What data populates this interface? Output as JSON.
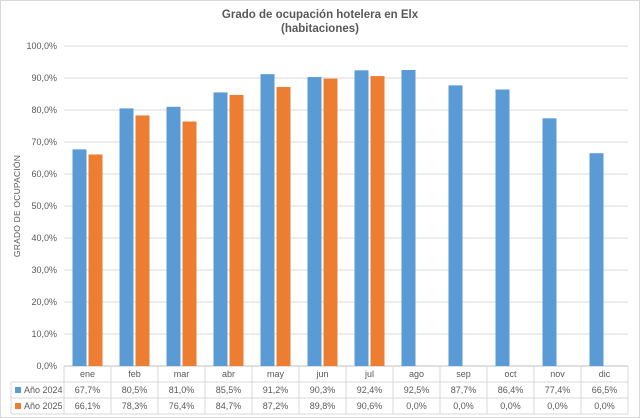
{
  "chart_data": {
    "type": "bar",
    "title": "Grado de ocupación hotelera en Elx",
    "subtitle": "(habitaciones)",
    "xlabel": "",
    "ylabel": "GRADO DE OCUPACIÓN",
    "ylim": [
      0,
      100
    ],
    "ytick_step": 10,
    "ytick_suffix": "%",
    "grid": true,
    "legend": "data-table-left",
    "categories": [
      "ene",
      "feb",
      "mar",
      "abr",
      "may",
      "jun",
      "jul",
      "ago",
      "sep",
      "oct",
      "nov",
      "dic"
    ],
    "series": [
      {
        "name": "Año 2024",
        "color": "#5b9bd5",
        "values": [
          67.7,
          80.5,
          81.0,
          85.5,
          91.2,
          90.3,
          92.4,
          92.5,
          87.7,
          86.4,
          77.4,
          66.5
        ],
        "labels": [
          "67,7%",
          "80,5%",
          "81,0%",
          "85,5%",
          "91,2%",
          "90,3%",
          "92,4%",
          "92,5%",
          "87,7%",
          "86,4%",
          "77,4%",
          "66,5%"
        ]
      },
      {
        "name": "Año 2025",
        "color": "#ed7d31",
        "values": [
          66.1,
          78.3,
          76.4,
          84.7,
          87.2,
          89.8,
          90.6,
          0.0,
          0.0,
          0.0,
          0.0,
          0.0
        ],
        "labels": [
          "66,1%",
          "78,3%",
          "76,4%",
          "84,7%",
          "87,2%",
          "89,8%",
          "90,6%",
          "0,0%",
          "0,0%",
          "0,0%",
          "0,0%",
          "0,0%"
        ]
      }
    ]
  }
}
